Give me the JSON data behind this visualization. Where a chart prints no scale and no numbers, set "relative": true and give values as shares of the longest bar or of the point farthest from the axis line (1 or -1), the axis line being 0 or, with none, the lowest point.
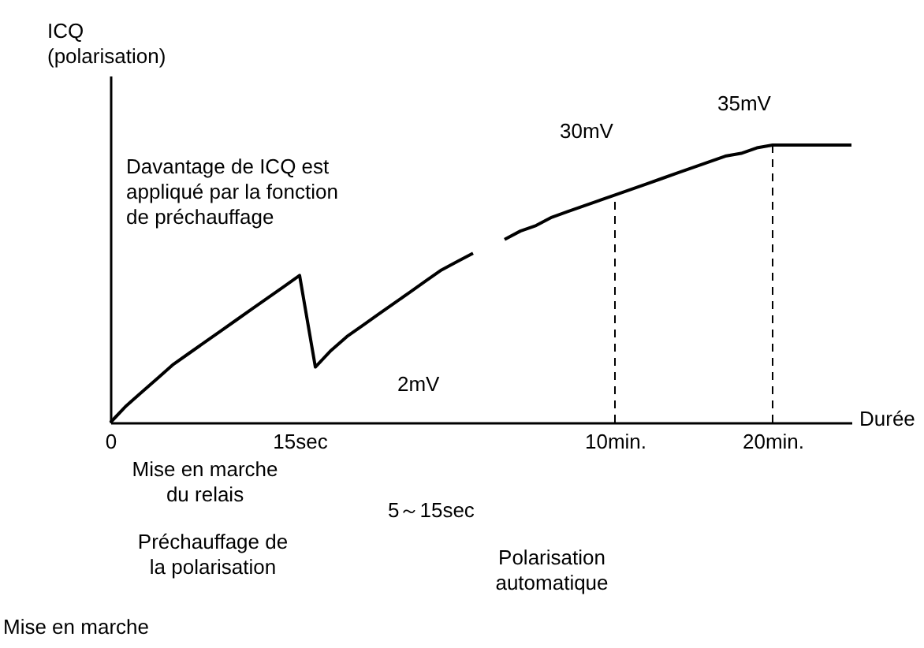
{
  "chart_data": {
    "type": "line",
    "relative": true,
    "xlabel": "Durée",
    "ylabel": "ICQ (polarisation)",
    "categories": [
      "0",
      null,
      null,
      null,
      null,
      null,
      null,
      null,
      null,
      null,
      null,
      null,
      "15sec",
      null,
      null,
      null,
      null,
      null,
      null,
      null,
      null,
      null,
      null,
      null,
      null,
      null,
      null,
      null,
      null,
      null,
      null,
      null,
      "10min.",
      null,
      null,
      null,
      null,
      null,
      null,
      null,
      null,
      null,
      "20min.",
      null,
      null,
      null,
      null,
      null
    ],
    "values": [
      0,
      0.06,
      0.11,
      0.16,
      0.21,
      0.25,
      0.29,
      0.33,
      0.37,
      0.41,
      0.45,
      0.49,
      0.53,
      0.2,
      0.26,
      0.31,
      0.35,
      0.39,
      0.43,
      0.47,
      0.51,
      0.55,
      0.58,
      0.61,
      null,
      0.66,
      0.69,
      0.71,
      0.74,
      0.76,
      0.78,
      0.8,
      0.82,
      0.84,
      0.86,
      0.88,
      0.9,
      0.92,
      0.94,
      0.96,
      0.97,
      0.99,
      1,
      1,
      1,
      1,
      1,
      1
    ],
    "color": "#000000",
    "line_style": "solid",
    "ref_lines": [
      {
        "axis": "x",
        "value": "10min.",
        "line_style": "dashed"
      },
      {
        "axis": "x",
        "value": "20min.",
        "line_style": "dashed"
      }
    ],
    "annotations": [
      "Davantage de ICQ est appliqué par la fonction de préchauffage",
      "2mV",
      {
        "text": "30mV",
        "x": "10min.",
        "y": 0.82
      },
      {
        "text": "35mV",
        "x": "20min.",
        "y": 1
      },
      "Mise en marche du relais",
      "5～15sec",
      "Préchauffage de la polarisation",
      "Polarisation automatique",
      "Mise en marche"
    ]
  }
}
